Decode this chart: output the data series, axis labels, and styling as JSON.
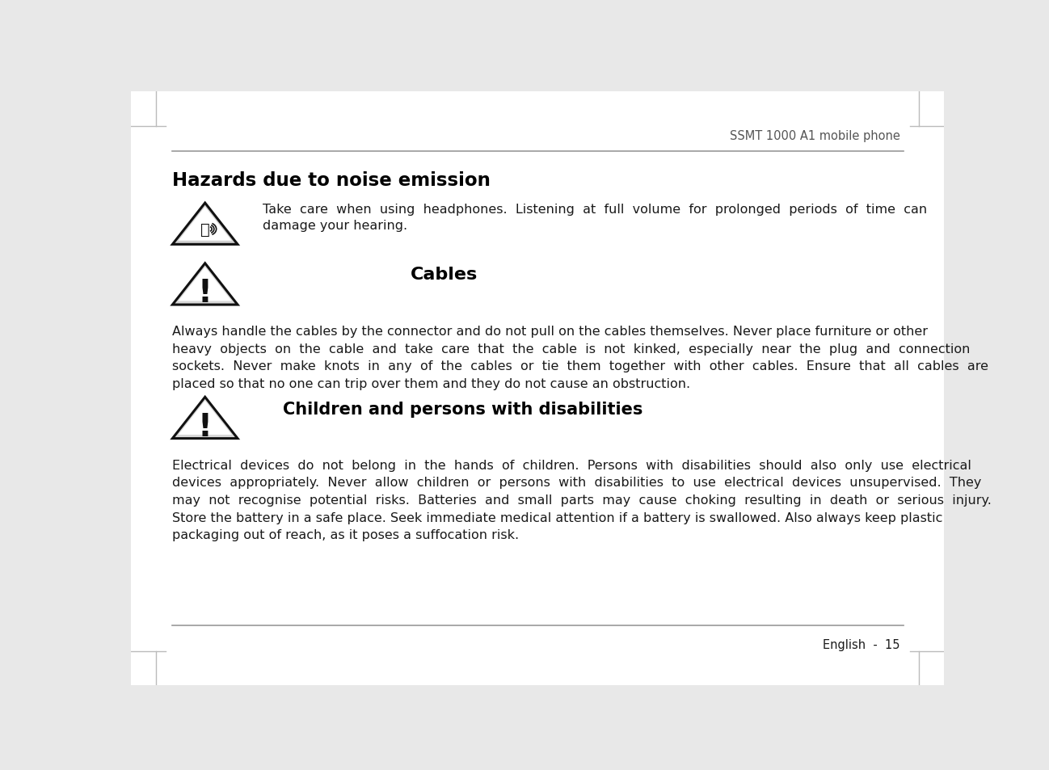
{
  "bg_color": "#e8e8e8",
  "page_color": "#ffffff",
  "header_text": "SSMT 1000 A1 mobile phone",
  "footer_text": "English  -  15",
  "section1_title": "Hazards due to noise emission",
  "section1_body_line1": "Take  care  when  using  headphones.  Listening  at  full  volume  for  prolonged  periods  of  time  can",
  "section1_body_line2": "damage your hearing.",
  "section2_title": "Cables",
  "section2_body": "Always handle the cables by the connector and do not pull on the cables themselves. Never place furniture or other\nheavy  objects  on  the  cable  and  take  care  that  the  cable  is  not  kinked,  especially  near  the  plug  and  connection\nsockets.  Never  make  knots  in  any  of  the  cables  or  tie  them  together  with  other  cables.  Ensure  that  all  cables  are\nplaced so that no one can trip over them and they do not cause an obstruction.",
  "section3_title": "Children and persons with disabilities",
  "section3_body": "Electrical  devices  do  not  belong  in  the  hands  of  children.  Persons  with  disabilities  should  also  only  use  electrical\ndevices  appropriately.  Never  allow  children  or  persons  with  disabilities  to  use  electrical  devices  unsupervised.  They\nmay  not  recognise  potential  risks.  Batteries  and  small  parts  may  cause  choking  resulting  in  death  or  serious  injury.\nStore the battery in a safe place. Seek immediate medical attention if a battery is swallowed. Also always keep plastic\npackaging out of reach, as it poses a suffocation risk.",
  "text_color": "#1a1a1a",
  "header_color": "#555555",
  "line_color": "#999999",
  "corner_line_color": "#bbbbbb",
  "font_size_body": 11.5,
  "font_size_title": 16.5,
  "font_size_section2_title": 16,
  "font_size_section3_title": 15,
  "font_size_header": 10.5
}
